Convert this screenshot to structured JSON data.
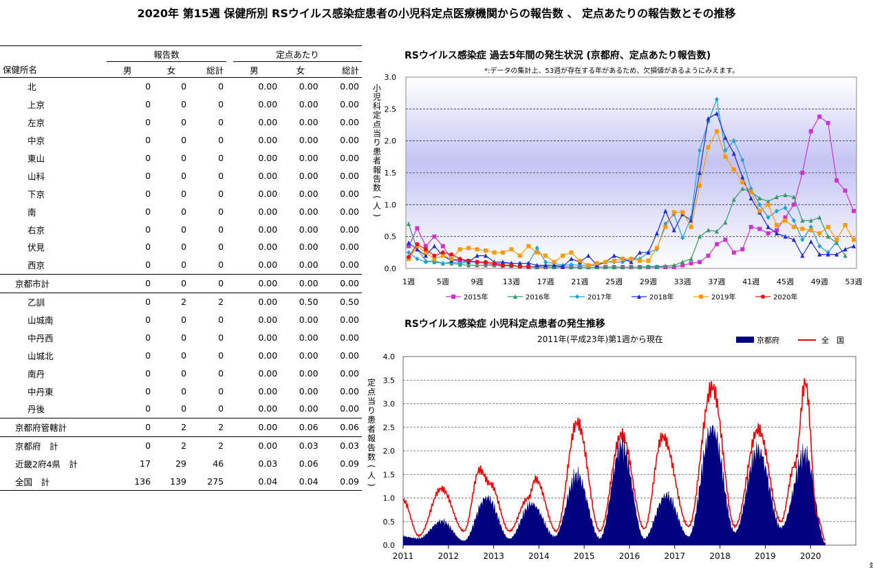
{
  "page_title": "2020年 第15週 保健所別 RSウイルス感染症患者の小児科定点医療機関からの報告数 、 定点あたりの報告数とその推移",
  "table": {
    "group_headers": [
      "報告数",
      "定点あたり"
    ],
    "name_header": "保健所名",
    "col_headers": [
      "男",
      "女",
      "総計",
      "男",
      "女",
      "総計"
    ],
    "rows": [
      {
        "name": "北",
        "v": [
          "0",
          "0",
          "0",
          "0.00",
          "0.00",
          "0.00"
        ],
        "type": "item"
      },
      {
        "name": "上京",
        "v": [
          "0",
          "0",
          "0",
          "0.00",
          "0.00",
          "0.00"
        ],
        "type": "item"
      },
      {
        "name": "左京",
        "v": [
          "0",
          "0",
          "0",
          "0.00",
          "0.00",
          "0.00"
        ],
        "type": "item"
      },
      {
        "name": "中京",
        "v": [
          "0",
          "0",
          "0",
          "0.00",
          "0.00",
          "0.00"
        ],
        "type": "item"
      },
      {
        "name": "東山",
        "v": [
          "0",
          "0",
          "0",
          "0.00",
          "0.00",
          "0.00"
        ],
        "type": "item"
      },
      {
        "name": "山科",
        "v": [
          "0",
          "0",
          "0",
          "0.00",
          "0.00",
          "0.00"
        ],
        "type": "item"
      },
      {
        "name": "下京",
        "v": [
          "0",
          "0",
          "0",
          "0.00",
          "0.00",
          "0.00"
        ],
        "type": "item"
      },
      {
        "name": "南",
        "v": [
          "0",
          "0",
          "0",
          "0.00",
          "0.00",
          "0.00"
        ],
        "type": "item"
      },
      {
        "name": "右京",
        "v": [
          "0",
          "0",
          "0",
          "0.00",
          "0.00",
          "0.00"
        ],
        "type": "item"
      },
      {
        "name": "伏見",
        "v": [
          "0",
          "0",
          "0",
          "0.00",
          "0.00",
          "0.00"
        ],
        "type": "item"
      },
      {
        "name": "西京",
        "v": [
          "0",
          "0",
          "0",
          "0.00",
          "0.00",
          "0.00"
        ],
        "type": "item"
      },
      {
        "name": "京都市計",
        "v": [
          "0",
          "0",
          "0",
          "0.00",
          "0.00",
          "0.00"
        ],
        "type": "sub"
      },
      {
        "name": "乙訓",
        "v": [
          "0",
          "2",
          "2",
          "0.00",
          "0.50",
          "0.50"
        ],
        "type": "item"
      },
      {
        "name": "山城南",
        "v": [
          "0",
          "0",
          "0",
          "0.00",
          "0.00",
          "0.00"
        ],
        "type": "item"
      },
      {
        "name": "中丹西",
        "v": [
          "0",
          "0",
          "0",
          "0.00",
          "0.00",
          "0.00"
        ],
        "type": "item"
      },
      {
        "name": "山城北",
        "v": [
          "0",
          "0",
          "0",
          "0.00",
          "0.00",
          "0.00"
        ],
        "type": "item"
      },
      {
        "name": "南丹",
        "v": [
          "0",
          "0",
          "0",
          "0.00",
          "0.00",
          "0.00"
        ],
        "type": "item"
      },
      {
        "name": "中丹東",
        "v": [
          "0",
          "0",
          "0",
          "0.00",
          "0.00",
          "0.00"
        ],
        "type": "item"
      },
      {
        "name": "丹後",
        "v": [
          "0",
          "0",
          "0",
          "0.00",
          "0.00",
          "0.00"
        ],
        "type": "item"
      },
      {
        "name": "京都府管轄計",
        "v": [
          "0",
          "2",
          "2",
          "0.00",
          "0.06",
          "0.06"
        ],
        "type": "sub"
      },
      {
        "name": "京都府　計",
        "v": [
          "0",
          "2",
          "2",
          "0.00",
          "0.03",
          "0.03"
        ],
        "type": "total"
      },
      {
        "name": "近畿2府4県　計",
        "v": [
          "17",
          "29",
          "46",
          "0.03",
          "0.06",
          "0.09"
        ],
        "type": "total"
      },
      {
        "name": "全国　計",
        "v": [
          "136",
          "139",
          "275",
          "0.04",
          "0.04",
          "0.09"
        ],
        "type": "total"
      }
    ]
  },
  "chart_data": [
    {
      "type": "line",
      "title": "RSウイルス感染症 過去5年間の発生状況 (京都府、定点あたり報告数)",
      "subtitle": "*:データの集計上、53週が存在する年があるため、欠損値があるようにみえます。",
      "ylabel": "小児科定点当り患者報告数(人)",
      "ylim": [
        0,
        3.0
      ],
      "yticks": [
        "0.0",
        "0.5",
        "1.0",
        "1.5",
        "2.0",
        "2.5",
        "3.0"
      ],
      "xticks": [
        "1週",
        "5週",
        "9週",
        "13週",
        "17週",
        "21週",
        "25週",
        "29週",
        "33週",
        "37週",
        "41週",
        "45週",
        "49週",
        "53週"
      ],
      "xtick_weeks": [
        1,
        5,
        9,
        13,
        17,
        21,
        25,
        29,
        33,
        37,
        41,
        45,
        49,
        53
      ],
      "grid": true,
      "legend_position": "bottom",
      "series": [
        {
          "name": "2015年",
          "color": "#cc33cc",
          "marker": "square",
          "values": [
            0.35,
            0.63,
            0.35,
            0.5,
            0.35,
            0.15,
            0.1,
            0.12,
            0.1,
            0.08,
            0.06,
            0.05,
            0.05,
            0.03,
            0.02,
            0.02,
            0.02,
            0.02,
            0.02,
            0.02,
            0.02,
            0.02,
            0.02,
            0.02,
            0.02,
            0.02,
            0.02,
            0.02,
            0.02,
            0.02,
            0.02,
            0.02,
            0.05,
            0.08,
            0.1,
            0.2,
            0.38,
            0.45,
            0.25,
            0.3,
            0.65,
            0.62,
            0.55,
            0.6,
            0.8,
            1.0,
            1.5,
            2.15,
            2.38,
            2.28,
            1.38,
            1.22,
            0.9
          ]
        },
        {
          "name": "2016年",
          "color": "#339966",
          "marker": "triangle",
          "values": [
            0.7,
            0.3,
            0.12,
            0.1,
            0.08,
            0.08,
            0.06,
            0.05,
            0.05,
            0.05,
            0.05,
            0.04,
            0.04,
            0.03,
            0.03,
            0.03,
            0.03,
            0.02,
            0.03,
            0.02,
            0.02,
            0.02,
            0.02,
            0.02,
            0.02,
            0.02,
            0.02,
            0.02,
            0.03,
            0.03,
            0.04,
            0.05,
            0.1,
            0.15,
            0.5,
            0.6,
            0.58,
            0.72,
            1.08,
            1.25,
            1.2,
            1.1,
            1.05,
            1.12,
            1.15,
            1.12,
            0.75,
            0.75,
            0.8,
            0.5,
            0.4,
            0.2
          ]
        },
        {
          "name": "2017年",
          "color": "#1ea0d8",
          "marker": "diamond",
          "values": [
            0.25,
            0.15,
            0.1,
            0.12,
            0.08,
            0.1,
            0.08,
            0.1,
            0.1,
            0.1,
            0.08,
            0.08,
            0.08,
            0.08,
            0.08,
            0.32,
            0.1,
            0.08,
            0.05,
            0.06,
            0.05,
            0.05,
            0.05,
            0.1,
            0.1,
            0.1,
            0.15,
            0.15,
            0.25,
            0.3,
            0.7,
            0.85,
            0.48,
            0.8,
            1.85,
            2.3,
            2.65,
            1.85,
            2.0,
            1.7,
            1.25,
            1.0,
            0.8,
            0.9,
            0.95,
            0.75,
            0.45,
            0.65,
            0.35,
            0.25,
            0.42
          ]
        },
        {
          "name": "2018年",
          "color": "#1a2ad6",
          "marker": "triangle",
          "values": [
            0.4,
            0.3,
            0.2,
            0.35,
            0.2,
            0.12,
            0.15,
            0.1,
            0.2,
            0.2,
            0.1,
            0.1,
            0.08,
            0.08,
            0.08,
            0.05,
            0.05,
            0.05,
            0.03,
            0.15,
            0.1,
            0.2,
            0.05,
            0.1,
            0.2,
            0.15,
            0.1,
            0.25,
            0.25,
            0.55,
            0.9,
            0.6,
            0.85,
            0.75,
            1.5,
            2.35,
            2.43,
            2.05,
            1.8,
            1.43,
            1.1,
            0.88,
            0.65,
            0.55,
            0.5,
            0.45,
            0.2,
            0.42,
            0.22,
            0.22,
            0.22,
            0.3,
            0.35
          ]
        },
        {
          "name": "2019年",
          "color": "#ff9900",
          "marker": "square",
          "values": [
            0.15,
            0.35,
            0.25,
            0.15,
            0.2,
            0.15,
            0.3,
            0.32,
            0.3,
            0.28,
            0.25,
            0.25,
            0.3,
            0.2,
            0.35,
            0.25,
            0.2,
            0.1,
            0.2,
            0.25,
            0.12,
            0.05,
            0.08,
            0.1,
            0.12,
            0.15,
            0.15,
            0.12,
            0.12,
            0.32,
            0.65,
            0.88,
            0.88,
            0.65,
            1.3,
            1.9,
            2.15,
            1.75,
            1.55,
            1.35,
            1.2,
            0.9,
            1.0,
            0.68,
            0.75,
            0.65,
            0.62,
            0.6,
            0.55,
            0.65,
            0.45,
            0.68,
            0.45
          ]
        },
        {
          "name": "2020年",
          "color": "#ee1111",
          "marker": "circle",
          "values": [
            0.18,
            0.38,
            0.3,
            0.2,
            0.25,
            0.22,
            0.15,
            0.12,
            0.1,
            0.1,
            0.08,
            0.05,
            0.05,
            0.03,
            0.03
          ]
        }
      ]
    },
    {
      "type": "area",
      "title": "RSウイルス感染症 小児科定点患者の発生推移",
      "subtitle": "2011年(平成23年)第1週から現在",
      "ylabel": "定点当り患者報告数(人)",
      "xlabel": "年",
      "ylim": [
        0,
        4.0
      ],
      "yticks": [
        "0.0",
        "0.5",
        "1.0",
        "1.5",
        "2.0",
        "2.5",
        "3.0",
        "3.5",
        "4.0"
      ],
      "years": [
        "2011",
        "2012",
        "2013",
        "2014",
        "2015",
        "2016",
        "2017",
        "2018",
        "2019",
        "2020"
      ],
      "legend_position": "top-right",
      "series": [
        {
          "name": "京都府",
          "color": "#000080",
          "kind": "area",
          "peaks": [
            {
              "week": 0,
              "value": 0.2
            },
            {
              "week": 18,
              "value": 0.15
            },
            {
              "week": 44,
              "value": 0.55
            },
            {
              "week": 70,
              "value": 0.1
            },
            {
              "week": 96,
              "value": 1.1
            },
            {
              "week": 122,
              "value": 0.15
            },
            {
              "week": 148,
              "value": 0.95
            },
            {
              "week": 174,
              "value": 0.2
            },
            {
              "week": 200,
              "value": 1.6
            },
            {
              "week": 226,
              "value": 0.15
            },
            {
              "week": 251,
              "value": 2.3
            },
            {
              "week": 277,
              "value": 0.15
            },
            {
              "week": 302,
              "value": 1.15
            },
            {
              "week": 328,
              "value": 0.2
            },
            {
              "week": 355,
              "value": 2.7
            },
            {
              "week": 381,
              "value": 0.3
            },
            {
              "week": 408,
              "value": 2.2
            },
            {
              "week": 434,
              "value": 0.4
            },
            {
              "week": 462,
              "value": 2.1
            },
            {
              "week": 485,
              "value": 0.05
            }
          ]
        },
        {
          "name": "全　国",
          "color": "#ee0000",
          "kind": "line",
          "peaks": [
            {
              "week": 0,
              "value": 0.95
            },
            {
              "week": 18,
              "value": 0.2
            },
            {
              "week": 44,
              "value": 1.2
            },
            {
              "week": 70,
              "value": 0.3
            },
            {
              "week": 88,
              "value": 1.6
            },
            {
              "week": 100,
              "value": 1.3
            },
            {
              "week": 122,
              "value": 0.3
            },
            {
              "week": 144,
              "value": 1.0
            },
            {
              "week": 152,
              "value": 1.4
            },
            {
              "week": 176,
              "value": 0.3
            },
            {
              "week": 200,
              "value": 2.6
            },
            {
              "week": 226,
              "value": 0.3
            },
            {
              "week": 251,
              "value": 2.35
            },
            {
              "week": 277,
              "value": 0.35
            },
            {
              "week": 298,
              "value": 2.3
            },
            {
              "week": 328,
              "value": 0.4
            },
            {
              "week": 355,
              "value": 3.35
            },
            {
              "week": 381,
              "value": 0.4
            },
            {
              "week": 408,
              "value": 2.45
            },
            {
              "week": 434,
              "value": 0.5
            },
            {
              "week": 450,
              "value": 1.7
            },
            {
              "week": 462,
              "value": 3.45
            },
            {
              "week": 476,
              "value": 0.6
            },
            {
              "week": 485,
              "value": 0.1
            }
          ]
        }
      ]
    }
  ]
}
